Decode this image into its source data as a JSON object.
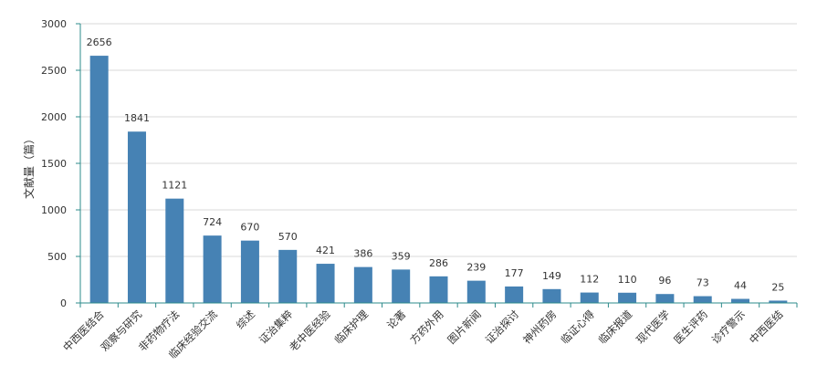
{
  "chart_data": {
    "type": "bar",
    "title": "",
    "xlabel": "",
    "ylabel": "文献量（篇）",
    "ylim": [
      0,
      3000
    ],
    "yticks": [
      0,
      500,
      1000,
      1500,
      2000,
      2500,
      3000
    ],
    "grid": true,
    "bar_color": "#4682b4",
    "axis_color": "#2e8b8b",
    "grid_color": "#d9d9d9",
    "categories": [
      "中西医结合",
      "观察与研究",
      "非药物疗法",
      "临床经验交流",
      "综述",
      "证治集粹",
      "老中医经验",
      "临床护理",
      "论著",
      "方药外用",
      "图片新闻",
      "证治探讨",
      "神州药房",
      "临证心得",
      "临床报道",
      "现代医学",
      "医生评药",
      "诊疗警示",
      "中西医结"
    ],
    "values": [
      2656,
      1841,
      1121,
      724,
      670,
      570,
      421,
      386,
      359,
      286,
      239,
      177,
      149,
      112,
      110,
      96,
      73,
      44,
      25
    ]
  }
}
